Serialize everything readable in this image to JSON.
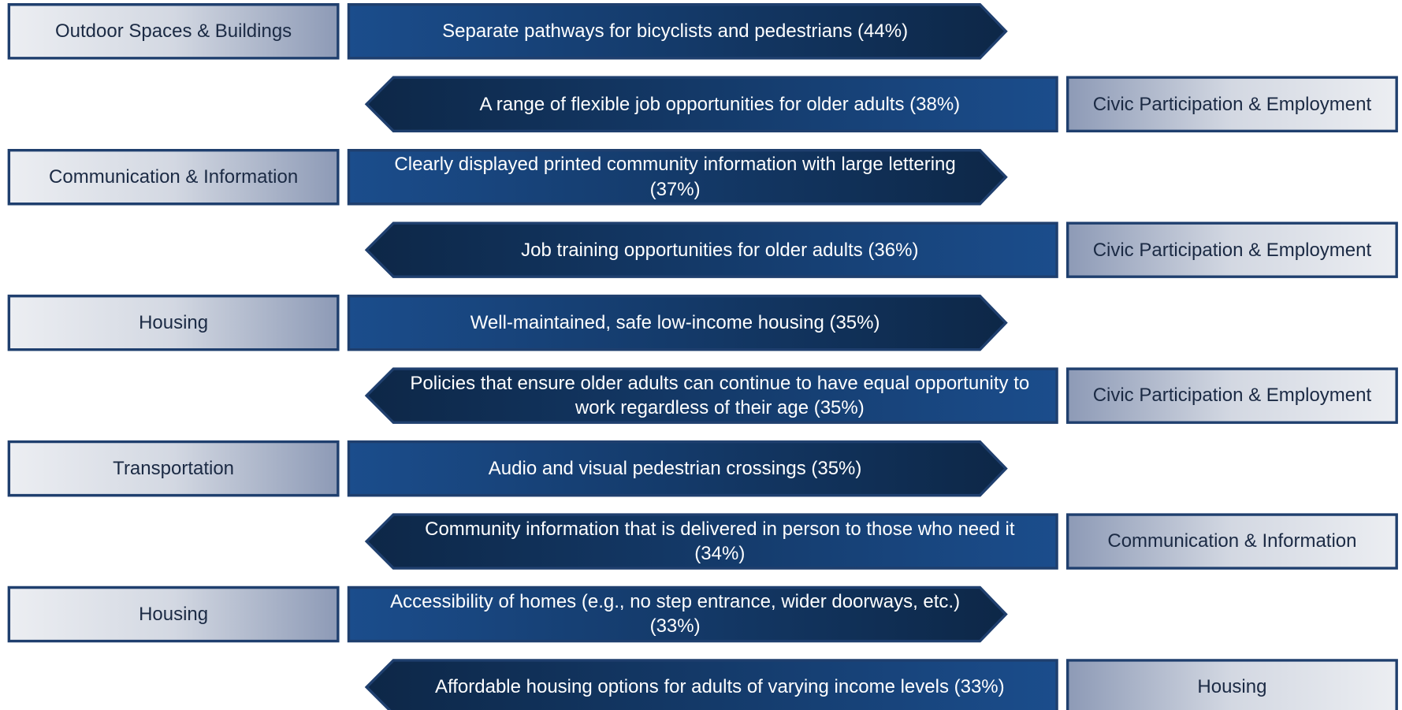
{
  "rows": [
    {
      "category": "Outdoor Spaces & Buildings",
      "item": "Separate pathways for bicyclists and pedestrians (44%)"
    },
    {
      "category": "Civic Participation & Employment",
      "item": "A range of flexible job opportunities for older adults (38%)"
    },
    {
      "category": "Communication & Information",
      "item": "Clearly displayed printed community information with large lettering (37%)"
    },
    {
      "category": "Civic Participation & Employment",
      "item": "Job training opportunities for older adults (36%)"
    },
    {
      "category": "Housing",
      "item": "Well-maintained, safe low-income housing (35%)"
    },
    {
      "category": "Civic Participation & Employment",
      "item": "Policies that ensure older adults can continue to have equal opportunity to work regardless of their age (35%)"
    },
    {
      "category": "Transportation",
      "item": "Audio and visual pedestrian crossings (35%)"
    },
    {
      "category": "Communication & Information",
      "item": "Community information that is delivered in person to those who need it (34%)"
    },
    {
      "category": "Housing",
      "item": "Accessibility of homes (e.g., no step entrance, wider doorways, etc.) (33%)"
    },
    {
      "category": "Housing",
      "item": "Affordable housing options for adults of varying income levels (33%)"
    }
  ]
}
